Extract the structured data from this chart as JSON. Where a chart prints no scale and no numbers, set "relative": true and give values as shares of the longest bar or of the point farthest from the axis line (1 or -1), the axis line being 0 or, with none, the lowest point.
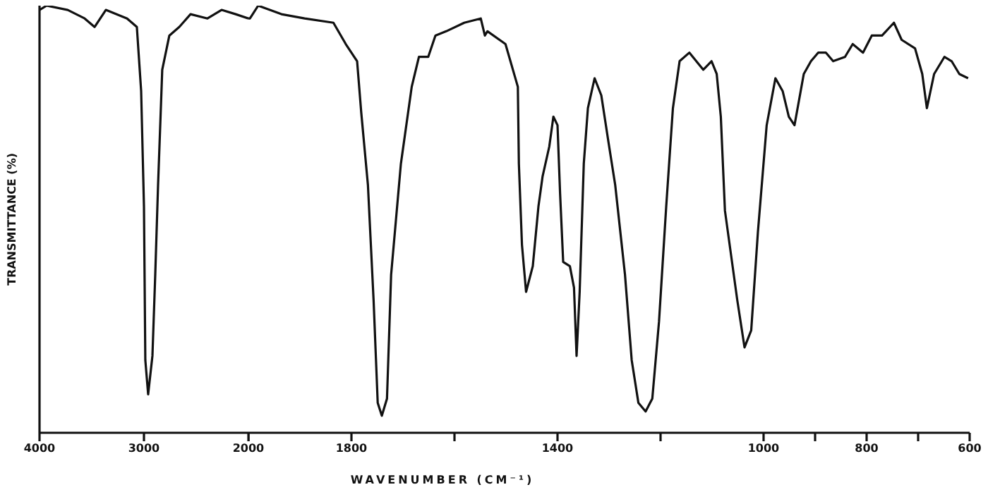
{
  "chart_data": [
    {
      "type": "line",
      "relative": true,
      "ylabel": "TRANSMITTANCE (%)",
      "xlim": [
        4000,
        2000
      ],
      "xticks": [
        4000,
        3000,
        2000
      ],
      "x": [
        4000,
        3932,
        3730,
        3568,
        3473,
        3365,
        3162,
        3068,
        3027,
        3000,
        2987,
        2960,
        2919,
        2892,
        2865,
        2825,
        2757,
        2662,
        2554,
        2392,
        2257,
        2122,
        2000
      ],
      "series": [
        {
          "color": "#111111",
          "values": [
            0.99,
            1.0,
            0.99,
            0.97,
            0.95,
            0.99,
            0.97,
            0.95,
            0.8,
            0.53,
            0.17,
            0.09,
            0.18,
            0.37,
            0.58,
            0.85,
            0.93,
            0.95,
            0.98,
            0.97,
            0.99,
            0.98,
            0.97
          ]
        }
      ]
    },
    {
      "type": "line",
      "relative": true,
      "xlabel": "WAVENUMBER (CM⁻¹)",
      "xlim": [
        2000,
        600
      ],
      "xticks": [
        {
          "value": 2000,
          "label": null
        },
        1800,
        {
          "value": 1600,
          "label": null
        },
        1400,
        {
          "value": 1200,
          "label": null
        },
        1000,
        {
          "value": 900,
          "label": null
        },
        800,
        {
          "value": 700,
          "label": null
        },
        600
      ],
      "x": [
        2000,
        1997,
        1981,
        1936,
        1891,
        1835,
        1811,
        1789,
        1781,
        1768,
        1757,
        1749,
        1741,
        1731,
        1723,
        1704,
        1683,
        1669,
        1651,
        1637,
        1616,
        1581,
        1549,
        1541,
        1536,
        1501,
        1477,
        1475,
        1469,
        1461,
        1448,
        1437,
        1429,
        1416,
        1408,
        1400,
        1395,
        1389,
        1376,
        1368,
        1363,
        1357,
        1349,
        1341,
        1328,
        1315,
        1301,
        1288,
        1269,
        1256,
        1243,
        1229,
        1216,
        1203,
        1189,
        1176,
        1163,
        1144,
        1117,
        1101,
        1091,
        1083,
        1075,
        1051,
        1037,
        1024,
        1011,
        994,
        977,
        963,
        951,
        940,
        922,
        908,
        894,
        879,
        865,
        842,
        827,
        807,
        790,
        770,
        747,
        732,
        706,
        692,
        683,
        669,
        649,
        635,
        620,
        603
      ],
      "series": [
        {
          "color": "#111111",
          "values": [
            0.97,
            0.97,
            1.0,
            0.98,
            0.97,
            0.96,
            0.91,
            0.87,
            0.75,
            0.58,
            0.31,
            0.07,
            0.04,
            0.08,
            0.37,
            0.63,
            0.81,
            0.88,
            0.88,
            0.93,
            0.94,
            0.96,
            0.97,
            0.93,
            0.94,
            0.91,
            0.81,
            0.63,
            0.44,
            0.33,
            0.39,
            0.53,
            0.6,
            0.67,
            0.74,
            0.72,
            0.56,
            0.4,
            0.39,
            0.34,
            0.18,
            0.33,
            0.63,
            0.76,
            0.83,
            0.79,
            0.68,
            0.58,
            0.37,
            0.17,
            0.07,
            0.05,
            0.08,
            0.26,
            0.53,
            0.76,
            0.87,
            0.89,
            0.85,
            0.87,
            0.84,
            0.74,
            0.52,
            0.31,
            0.2,
            0.24,
            0.47,
            0.72,
            0.83,
            0.8,
            0.74,
            0.72,
            0.84,
            0.87,
            0.89,
            0.89,
            0.87,
            0.88,
            0.91,
            0.89,
            0.93,
            0.93,
            0.96,
            0.92,
            0.9,
            0.84,
            0.76,
            0.84,
            0.88,
            0.87,
            0.84,
            0.83
          ]
        }
      ]
    }
  ]
}
